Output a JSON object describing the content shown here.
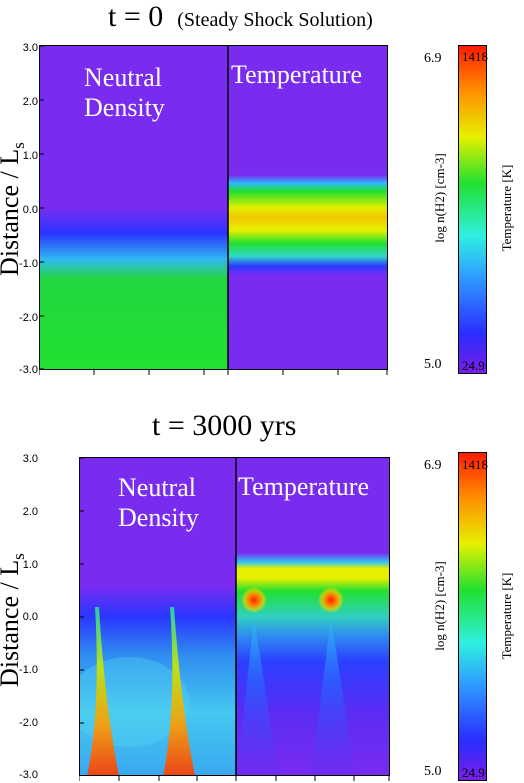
{
  "figure": {
    "panels": [
      {
        "title": "t = 0",
        "subtitle": "(Steady Shock Solution)",
        "ylabel_text": "Distance / L",
        "ylabel_sub": "s",
        "yticks": [
          "3.0",
          "2.0",
          "1.0",
          "0.0",
          "-1.0",
          "-2.0",
          "-3.0"
        ],
        "left_label_line1": "Neutral",
        "left_label_line2": "Density",
        "right_label": "Temperature",
        "colorbar": {
          "left_max": "6.9",
          "left_min": "5.0",
          "right_max": "1418",
          "right_min": "24.9",
          "left_axis_label": "log n(H2) [cm-3]",
          "right_axis_label": "Temperature [K]"
        }
      },
      {
        "title": "t = 3000 yrs",
        "subtitle": "",
        "ylabel_text": "Distance / L",
        "ylabel_sub": "s",
        "yticks": [
          "3.0",
          "2.0",
          "1.0",
          "0.0",
          "-1.0",
          "-2.0",
          "-3.0"
        ],
        "left_label_line1": "Neutral",
        "left_label_line2": "Density",
        "right_label": "Temperature",
        "colorbar": {
          "left_max": "6.9",
          "left_min": "5.0",
          "right_max": "1418",
          "right_min": "24.9",
          "left_axis_label": "log n(H2) [cm-3]",
          "right_axis_label": "Temperature [K]"
        }
      }
    ],
    "colors": {
      "purple": "#7a2bf0",
      "blue": "#2a3cff",
      "cyan": "#30c8f0",
      "green": "#22e030",
      "yellow": "#e8e800",
      "orange": "#ff9a00",
      "red": "#ff2a00"
    }
  }
}
